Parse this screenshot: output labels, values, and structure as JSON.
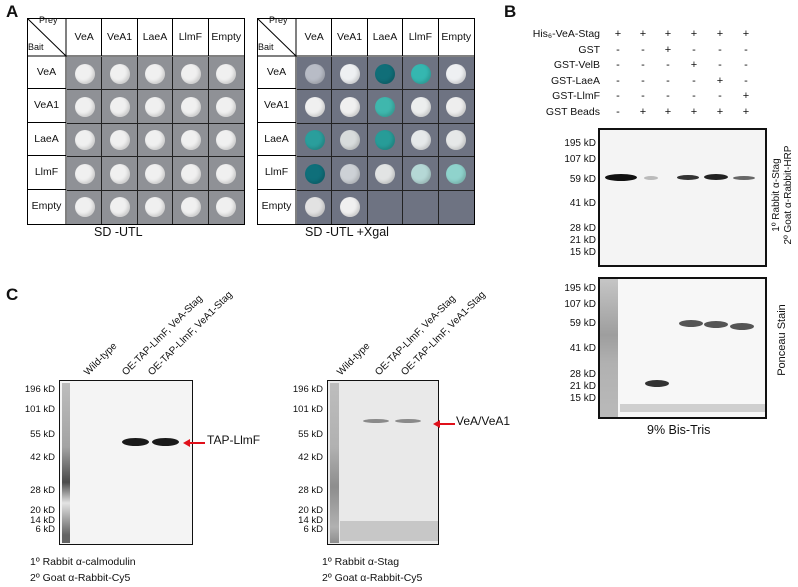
{
  "panels": {
    "a_label": "A",
    "b_label": "B",
    "c_label": "C"
  },
  "panel_a": {
    "corner_top": "Prey",
    "corner_bottom": "Bait",
    "columns": [
      "VeA",
      "VeA1",
      "LaeA",
      "LlmF",
      "Empty"
    ],
    "rows": [
      "VeA",
      "VeA1",
      "LaeA",
      "LlmF",
      "Empty"
    ],
    "left_caption": "SD -UTL",
    "right_caption": "SD -UTL +Xgal",
    "plate_color_left": "#8f9196",
    "plate_color_right": "#6e7382",
    "xgal_colors": [
      [
        "#b8bcc6",
        "#eef0f2",
        "#106e78",
        "#35b7b0",
        "#eef0f2"
      ],
      [
        "#f0f0f0",
        "#f0f0f0",
        "#3fb7ad",
        "#eceeee",
        "#eeeeee"
      ],
      [
        "#2a9e9c",
        "#d8dcdc",
        "#279c98",
        "#e6e9ea",
        "#e6e8e8"
      ],
      [
        "#0f6f7a",
        "#cdd1d6",
        "#e2e4e4",
        "#b5d8d6",
        "#8fd3cc"
      ],
      [
        "#e2e2e2",
        "#f0f0f0",
        "",
        "",
        ""
      ]
    ]
  },
  "panel_b": {
    "row_labels": [
      "His₆-VeA-Stag",
      "GST",
      "GST-VelB",
      "GST-LaeA",
      "GST-LlmF",
      "GST Beads"
    ],
    "signs": [
      [
        "+",
        "+",
        "+",
        "+",
        "+",
        "+"
      ],
      [
        "-",
        "-",
        "+",
        "-",
        "-",
        "-"
      ],
      [
        "-",
        "-",
        "-",
        "+",
        "-",
        "-"
      ],
      [
        "-",
        "-",
        "-",
        "-",
        "+",
        "-"
      ],
      [
        "-",
        "-",
        "-",
        "-",
        "-",
        "+"
      ],
      [
        "-",
        "+",
        "+",
        "+",
        "+",
        "+"
      ]
    ],
    "ladder_top": [
      "195 kD",
      "107 kD",
      "59 kD",
      "41 kD",
      "28 kD",
      "21 kD",
      "15 kD"
    ],
    "ladder_bottom": [
      "195 kD",
      "107 kD",
      "59 kD",
      "41 kD",
      "28 kD",
      "21 kD",
      "15 kD"
    ],
    "side_label_top_1": "1º Rabbit α-Stag",
    "side_label_top_2": "2º Goat α-Rabbit-HRP",
    "side_label_bottom": "Ponceau Stain",
    "gel_caption": "9% Bis-Tris"
  },
  "panel_c": {
    "lanes": [
      "Wild-type",
      "OE-TAP-LlmF, VeA-Stag",
      "OE-TAP-LlmF, VeA1-Stag"
    ],
    "ladder": [
      "196 kD",
      "101 kD",
      "55 kD",
      "42 kD",
      "28 kD",
      "20 kD",
      "14 kD",
      "6 kD"
    ],
    "left_band_label": "TAP-LlmF",
    "right_band_label": "VeA/VeA1",
    "left_caption_1": "1º Rabbit α-calmodulin",
    "left_caption_2": "2º Goat α-Rabbit-Cy5",
    "right_caption_1": "1º Rabbit α-Stag",
    "right_caption_2": "2º Goat α-Rabbit-Cy5",
    "arrow_color": "#e0101a"
  }
}
